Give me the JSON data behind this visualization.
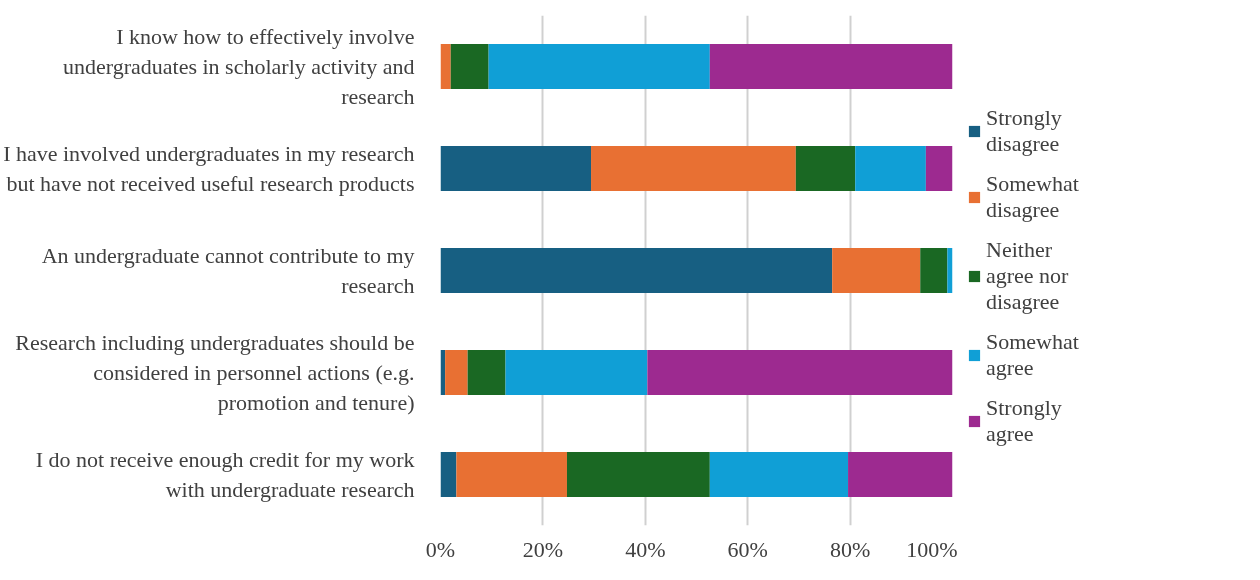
{
  "chart_data": {
    "type": "bar",
    "orientation": "horizontal",
    "stacked": true,
    "categories": [
      "I know how to effectively involve undergraduates in scholarly activity and research",
      "I have involved undergraduates in my research but have not received useful research products",
      "An undergraduate cannot contribute to my research",
      "Research including undergraduates should be considered in personnel actions (e.g. promotion and tenure)",
      "I do not receive enough credit for my work with undergraduate research"
    ],
    "series": [
      {
        "name": "Strongly disagree",
        "color": "#175f82",
        "values": [
          0,
          29.4,
          76.5,
          0.9,
          3.1
        ]
      },
      {
        "name": "Somewhat disagree",
        "color": "#e87033",
        "values": [
          2.0,
          40.0,
          17.2,
          4.4,
          21.6
        ]
      },
      {
        "name": "Neither agree nor disagree",
        "color": "#1a6823",
        "values": [
          7.4,
          11.6,
          5.3,
          7.4,
          27.9
        ]
      },
      {
        "name": "Somewhat agree",
        "color": "#109fd6",
        "values": [
          43.2,
          13.8,
          1.0,
          27.7,
          27.0
        ]
      },
      {
        "name": "Strongly agree",
        "color": "#9d2a90",
        "values": [
          47.4,
          5.2,
          0,
          59.6,
          20.4
        ]
      }
    ],
    "xlim": [
      0,
      100
    ],
    "xticks": [
      {
        "value": 0,
        "label": "0%"
      },
      {
        "value": 20,
        "label": "20%"
      },
      {
        "value": 40,
        "label": "40%"
      },
      {
        "value": 60,
        "label": "60%"
      },
      {
        "value": 80,
        "label": "80%"
      },
      {
        "value": 100,
        "label": "100%"
      }
    ],
    "grid": "x",
    "legend": "right"
  }
}
